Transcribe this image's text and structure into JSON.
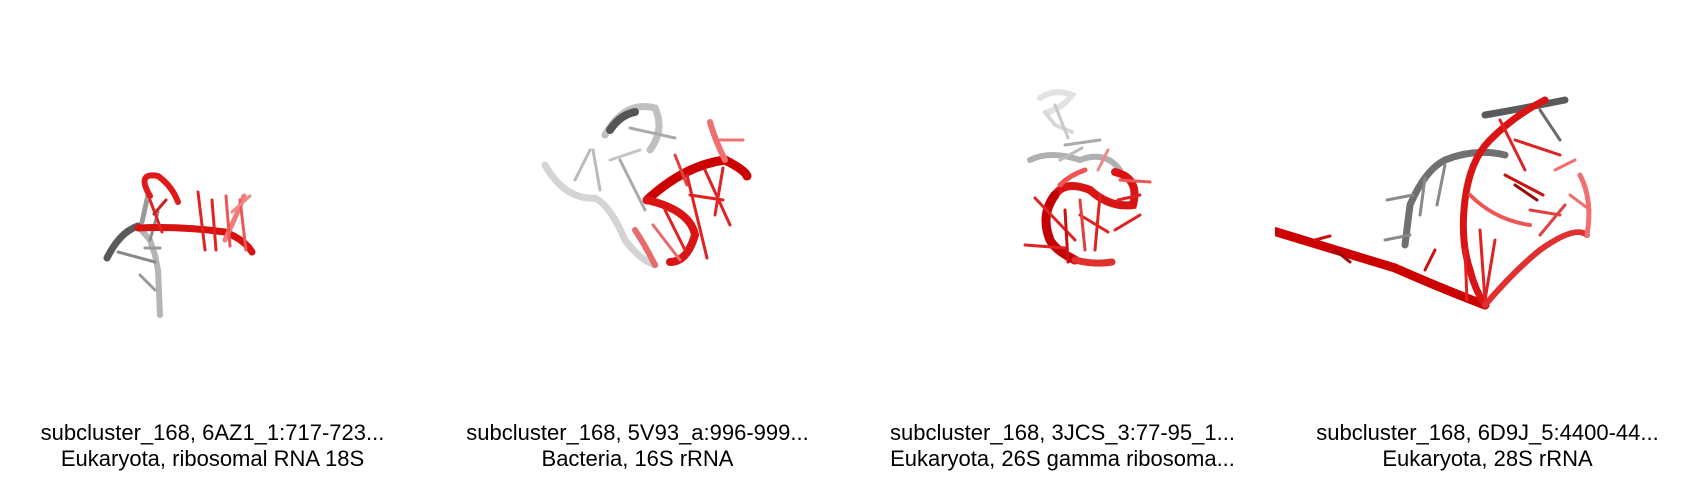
{
  "panels": [
    {
      "title": "subcluster_168, 6AZ1_1:717-723...",
      "subtitle": "Eukaryota, ribosomal RNA 18S",
      "image": "rna-structure-thumbnail"
    },
    {
      "title": "subcluster_168, 5V93_a:996-999...",
      "subtitle": "Bacteria, 16S rRNA",
      "image": "rna-structure-thumbnail"
    },
    {
      "title": "subcluster_168, 3JCS_3:77-95_1...",
      "subtitle": "Eukaryota, 26S gamma ribosoma...",
      "image": "rna-structure-thumbnail"
    },
    {
      "title": "subcluster_168, 6D9J_5:4400-44...",
      "subtitle": "Eukaryota, 28S rRNA",
      "image": "rna-structure-thumbnail"
    }
  ],
  "colors": {
    "highlight": "#dd1111",
    "highlight_light": "#f07070",
    "context_dark": "#555555",
    "context_light": "#c8c8c8"
  }
}
